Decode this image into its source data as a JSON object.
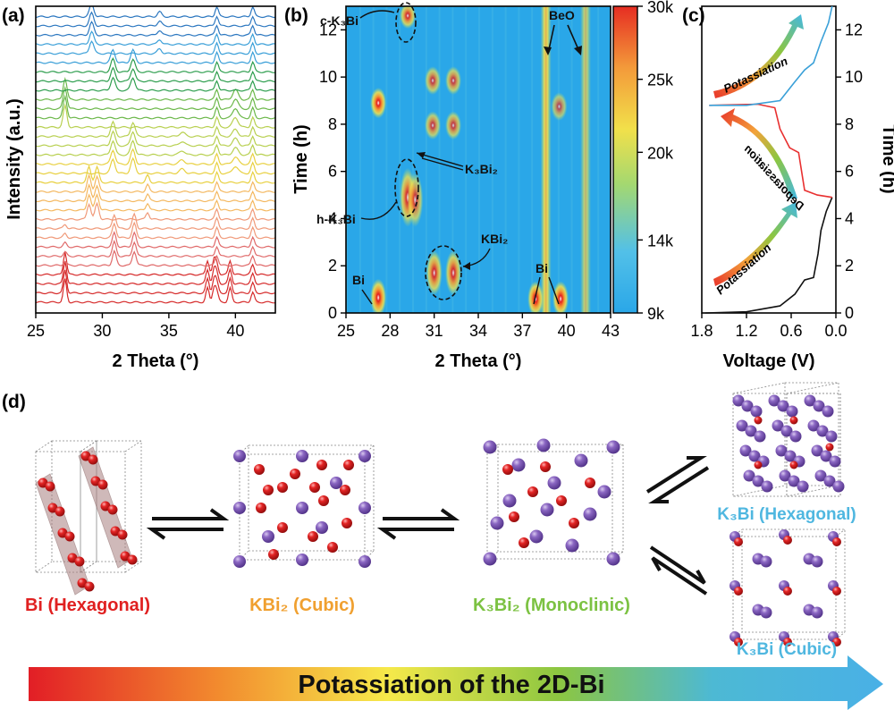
{
  "panel_labels": {
    "a": "(a)",
    "b": "(b)",
    "c": "(c)",
    "d": "(d)"
  },
  "colors": {
    "bi": "#e02020",
    "kbi2": "#f0a030",
    "k3bi2": "#7cc242",
    "k3bi": "#4fb7e0",
    "k_atom": "#7a55b0",
    "bi_atom": "#d81e1e"
  },
  "chart_data": [
    {
      "type": "line",
      "panel": "a",
      "xlabel": "2 Theta (°)",
      "ylabel": "Intensity (a.u.)",
      "xlim": [
        25,
        43
      ],
      "xticks": [
        "25",
        "30",
        "35",
        "40"
      ],
      "grid": false,
      "n_patterns": 32,
      "stack_order": "bottom-to-top",
      "series_colors": [
        "#d62b2b",
        "#e06a6a",
        "#f09a7a",
        "#f4b860",
        "#e8d040",
        "#b8d050",
        "#6cb84a",
        "#2e9e4e",
        "#3a9fd8",
        "#2d78c0"
      ],
      "phase_peaks": {
        "Bi": [
          27.2,
          37.9,
          38.4,
          39.6
        ],
        "KBi2": [
          30.9,
          32.4
        ],
        "h-K3Bi": [
          29.0,
          29.6
        ],
        "K3Bi2": [
          30.8,
          32.3
        ],
        "c-K3Bi": [
          29.2
        ],
        "BeO": [
          38.6,
          41.3
        ]
      }
    },
    {
      "type": "heatmap",
      "panel": "b",
      "xlabel": "2 Theta (°)",
      "ylabel": "Time (h)",
      "xlim": [
        25,
        43
      ],
      "ylim": [
        0,
        13
      ],
      "xticks": [
        "25",
        "28",
        "31",
        "34",
        "37",
        "40",
        "43"
      ],
      "yticks": [
        "0",
        "2",
        "4",
        "6",
        "8",
        "10",
        "12"
      ],
      "colorbar": {
        "min": 9000,
        "max": 30000,
        "ticks": [
          "9k",
          "14k",
          "20k",
          "25k",
          "30k"
        ]
      },
      "hotspots": [
        {
          "x": 27.2,
          "y0": 0,
          "y1": 1.3,
          "intensity": 1.0
        },
        {
          "x": 27.2,
          "y0": 8.4,
          "y1": 9.4,
          "intensity": 1.0
        },
        {
          "x": 31.0,
          "y0": 0.9,
          "y1": 2.5,
          "intensity": 0.9
        },
        {
          "x": 32.3,
          "y0": 0.9,
          "y1": 2.5,
          "intensity": 0.9
        },
        {
          "x": 29.2,
          "y0": 3.8,
          "y1": 6.0,
          "intensity": 0.9
        },
        {
          "x": 29.7,
          "y0": 3.8,
          "y1": 5.8,
          "intensity": 0.8
        },
        {
          "x": 30.9,
          "y0": 7.5,
          "y1": 8.4,
          "intensity": 0.8
        },
        {
          "x": 32.3,
          "y0": 7.5,
          "y1": 8.4,
          "intensity": 0.8
        },
        {
          "x": 30.9,
          "y0": 9.4,
          "y1": 10.3,
          "intensity": 0.8
        },
        {
          "x": 32.3,
          "y0": 9.4,
          "y1": 10.3,
          "intensity": 0.8
        },
        {
          "x": 29.2,
          "y0": 12.2,
          "y1": 13.0,
          "intensity": 0.9
        },
        {
          "x": 37.9,
          "y0": 0,
          "y1": 1.2,
          "intensity": 1.0
        },
        {
          "x": 39.6,
          "y0": 0,
          "y1": 1.2,
          "intensity": 1.0
        },
        {
          "x": 39.5,
          "y0": 8.3,
          "y1": 9.2,
          "intensity": 0.7
        }
      ],
      "stripes": [
        {
          "x": 38.6,
          "intensity": 0.9
        },
        {
          "x": 41.3,
          "intensity": 0.7
        }
      ],
      "annotations": [
        "c-K₃Bi",
        "K₃Bi₂",
        "h-K₃Bi",
        "KBi₂",
        "Bi",
        "Bi",
        "BeO"
      ]
    },
    {
      "type": "line",
      "panel": "c",
      "xlabel": "Voltage (V)",
      "ylabel": "Time (h)",
      "xlim": [
        1.8,
        0.0
      ],
      "ylim": [
        0,
        13
      ],
      "xticks": [
        "1.8",
        "1.2",
        "0.6",
        "0.0"
      ],
      "yticks": [
        "0",
        "2",
        "4",
        "6",
        "8",
        "10",
        "12"
      ],
      "series": [
        {
          "name": "",
          "color": "#111111",
          "points": [
            [
              1.75,
              0.0
            ],
            [
              1.2,
              0.05
            ],
            [
              0.75,
              0.3
            ],
            [
              0.55,
              0.8
            ],
            [
              0.42,
              1.4
            ],
            [
              0.3,
              1.5
            ],
            [
              0.24,
              2.5
            ],
            [
              0.2,
              3.5
            ],
            [
              0.13,
              4.3
            ],
            [
              0.05,
              4.9
            ]
          ]
        },
        {
          "name": "",
          "color": "#e83030",
          "points": [
            [
              0.05,
              4.9
            ],
            [
              0.25,
              5.0
            ],
            [
              0.42,
              5.2
            ],
            [
              0.5,
              6.8
            ],
            [
              0.62,
              7.0
            ],
            [
              0.75,
              7.8
            ],
            [
              0.82,
              8.7
            ],
            [
              1.05,
              8.85
            ],
            [
              1.7,
              8.8
            ]
          ]
        },
        {
          "name": "",
          "color": "#3aa0d8",
          "points": [
            [
              1.7,
              8.8
            ],
            [
              1.2,
              8.8
            ],
            [
              0.75,
              9.0
            ],
            [
              0.55,
              9.8
            ],
            [
              0.42,
              10.3
            ],
            [
              0.3,
              10.6
            ],
            [
              0.2,
              11.5
            ],
            [
              0.1,
              12.3
            ],
            [
              0.05,
              13.0
            ]
          ]
        }
      ],
      "labels": [
        "Potassiation",
        "Depotassiation",
        "Potassiation"
      ]
    }
  ],
  "panel_d": {
    "structures": [
      {
        "name": "Bi (Hexagonal)"
      },
      {
        "name": "KBi₂ (Cubic)"
      },
      {
        "name": "K₃Bi₂ (Monoclinic)"
      },
      {
        "name": "K₃Bi (Hexagonal)"
      },
      {
        "name": "K₃Bi (Cubic)"
      }
    ],
    "banner_text": "Potassiation of the 2D-Bi"
  }
}
